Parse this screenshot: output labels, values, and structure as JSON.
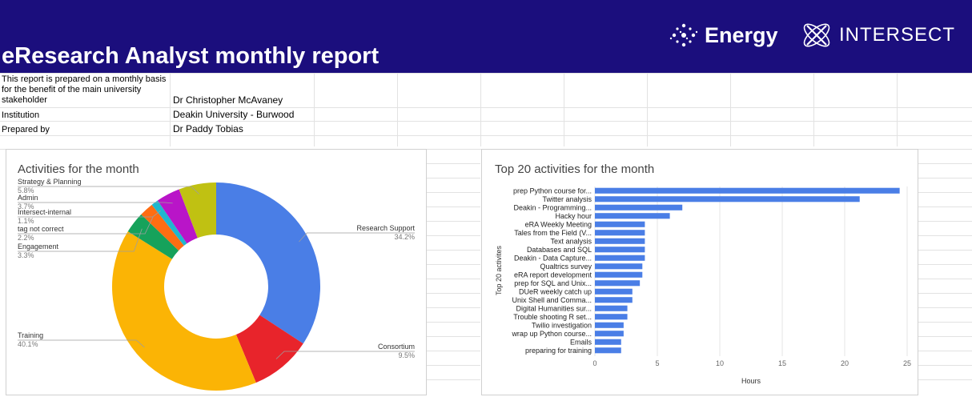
{
  "header": {
    "title": "eResearch Analyst monthly report",
    "logos": [
      {
        "icon": "sparkle-dots-icon",
        "text": "Energy"
      },
      {
        "icon": "intersect-orbit-icon",
        "text": "INTERSECT"
      }
    ],
    "background_color": "#1b0e7d"
  },
  "info": {
    "intro_lines": [
      "This report is prepared on a monthly basis",
      "for the benefit of the main university",
      "stakeholder"
    ],
    "stakeholder_value": "Dr Christopher McAvaney",
    "institution_label": "Institution",
    "institution_value": "Deakin University - Burwood",
    "prepared_label": "Prepared by",
    "prepared_value": "Dr Paddy Tobias"
  },
  "chart_data": [
    {
      "type": "pie",
      "title": "Activities for the month",
      "donut": true,
      "slices": [
        {
          "label": "Research Support",
          "value": 34.2,
          "display": "34.2%",
          "color": "#4a7ee6"
        },
        {
          "label": "Consortium",
          "value": 9.5,
          "display": "9.5%",
          "color": "#e8242b"
        },
        {
          "label": "Training",
          "value": 40.1,
          "display": "40.1%",
          "color": "#fbb405"
        },
        {
          "label": "Engagement",
          "value": 3.3,
          "display": "3.3%",
          "color": "#16a25b"
        },
        {
          "label": "tag not correct",
          "value": 2.2,
          "display": "2.2%",
          "color": "#ff6d12"
        },
        {
          "label": "Intersect-internal",
          "value": 1.1,
          "display": "1.1%",
          "color": "#1fb7cf"
        },
        {
          "label": "Admin",
          "value": 3.7,
          "display": "3.7%",
          "color": "#b915c8"
        },
        {
          "label": "Strategy & Planning",
          "value": 5.8,
          "display": "5.8%",
          "color": "#c0c112"
        }
      ]
    },
    {
      "type": "bar",
      "orientation": "horizontal",
      "title": "Top 20 activities for the month",
      "xlabel": "Hours",
      "ylabel": "Top 20 activites",
      "xlim": [
        0,
        25
      ],
      "xticks": [
        0,
        5,
        10,
        15,
        20,
        25
      ],
      "bar_color": "#4a7ee6",
      "categories": [
        "prep Python course for...",
        "Twitter analysis",
        "Deakin - Programming...",
        "Hacky hour",
        "eRA Weekly Meeting",
        "Tales from the Field (V...",
        "Text analysis",
        "Databases and SQL",
        "Deakin - Data Capture...",
        "Qualtrics survey",
        "eRA report development",
        "prep for SQL and Unix...",
        "DUeR weekly catch up",
        "Unix Shell and Comma...",
        "Digital Humanities sur...",
        "Trouble shooting R set...",
        "Twilio investigation",
        "wrap up Python course...",
        "Emails",
        "preparing for training"
      ],
      "values": [
        24.4,
        21.2,
        7.0,
        6.0,
        4.0,
        4.0,
        4.0,
        4.0,
        4.0,
        3.8,
        3.8,
        3.6,
        3.0,
        3.0,
        2.6,
        2.6,
        2.3,
        2.3,
        2.1,
        2.1
      ]
    }
  ]
}
